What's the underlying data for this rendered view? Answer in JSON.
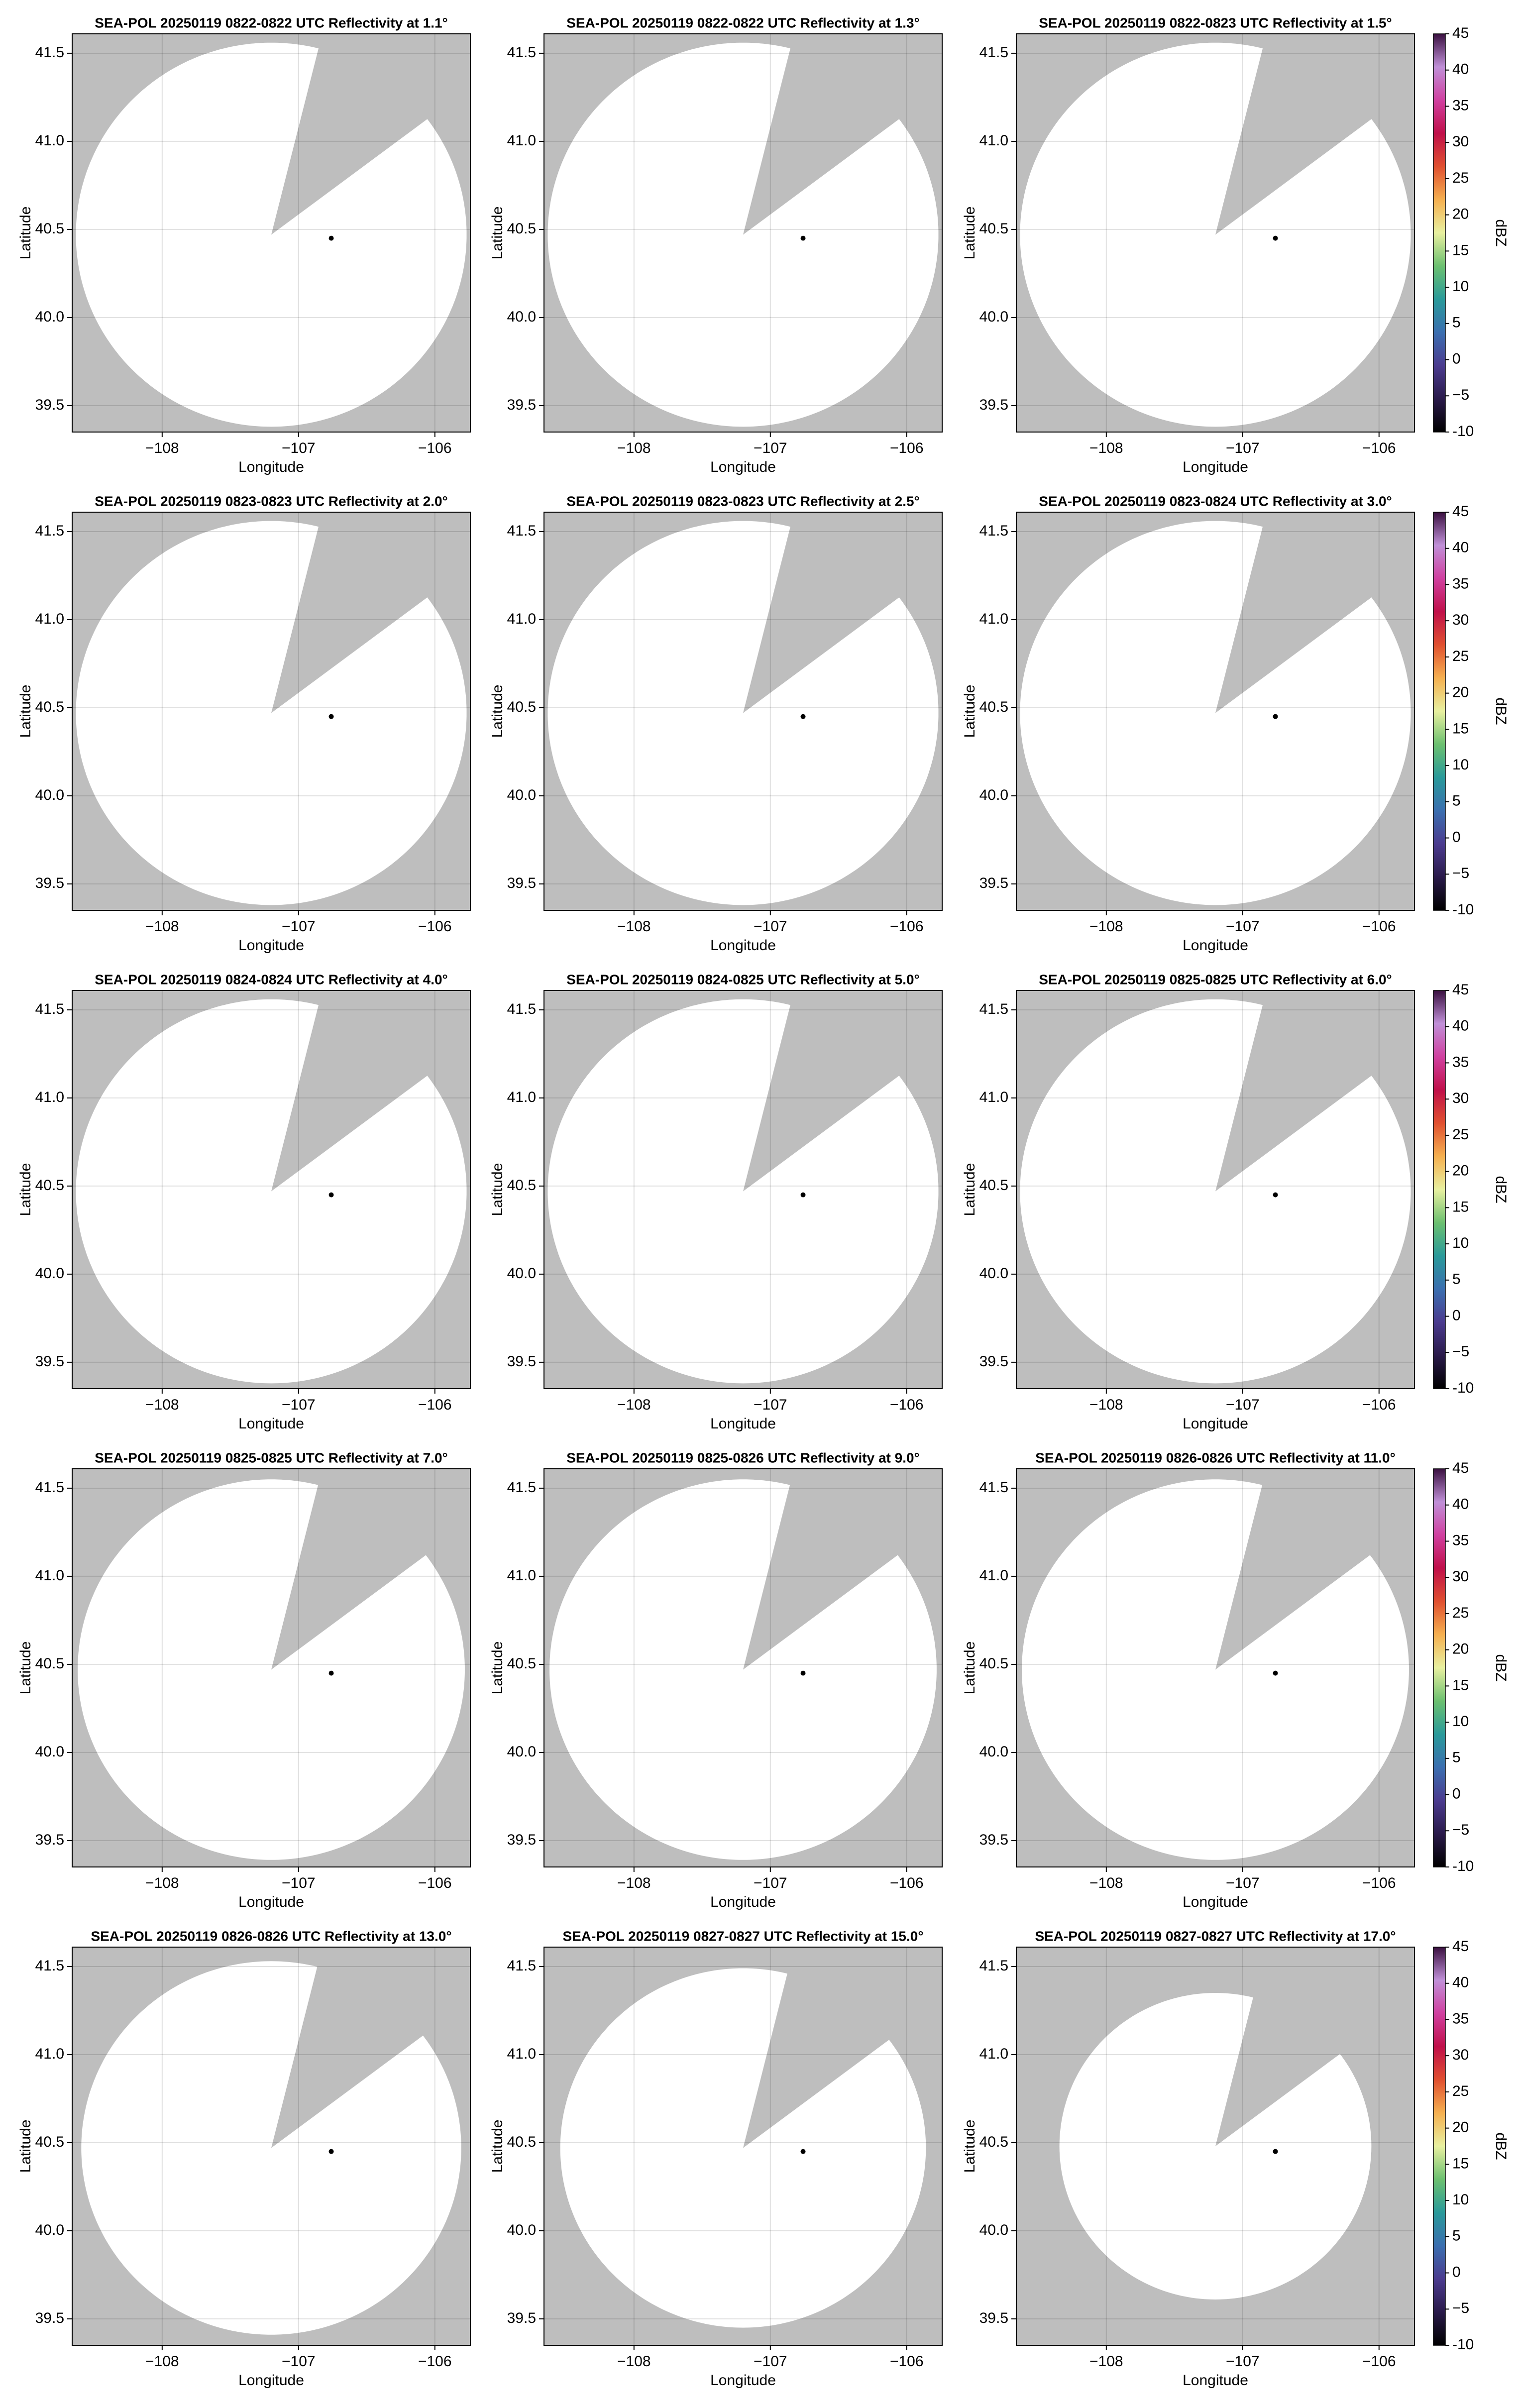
{
  "chart_data": [
    {
      "type": "map",
      "title": "SEA-POL 20250119 0822-0822 UTC Reflectivity at 1.1°",
      "xlabel": "Longitude",
      "ylabel": "Latitude",
      "xlim": [
        -108.66,
        -105.74
      ],
      "ylim": [
        39.35,
        41.61
      ],
      "xticks": [
        {
          "value": -108,
          "label": "−108"
        },
        {
          "value": -107,
          "label": "−107"
        },
        {
          "value": -106,
          "label": "−106"
        }
      ],
      "yticks": [
        39.5,
        {
          "value": 40,
          "label": "40.0"
        },
        40.5,
        {
          "value": 41,
          "label": "41.0"
        },
        41.5
      ],
      "grid": true,
      "background": "#bebebe",
      "coverage": {
        "lon": -107.2,
        "lat": 40.47,
        "radius": 1.09,
        "gap": [
          14,
          53
        ],
        "color": "#ffffff"
      },
      "marker": {
        "lon": -106.76,
        "lat": 40.45
      }
    },
    {
      "type": "map",
      "title": "SEA-POL 20250119 0822-0822 UTC Reflectivity at 1.3°",
      "xlabel": "Longitude",
      "ylabel": "Latitude",
      "xlim": [
        -108.66,
        -105.74
      ],
      "ylim": [
        39.35,
        41.61
      ],
      "xticks": [
        {
          "value": -108,
          "label": "−108"
        },
        {
          "value": -107,
          "label": "−107"
        },
        {
          "value": -106,
          "label": "−106"
        }
      ],
      "yticks": [
        39.5,
        {
          "value": 40,
          "label": "40.0"
        },
        40.5,
        {
          "value": 41,
          "label": "41.0"
        },
        41.5
      ],
      "grid": true,
      "background": "#bebebe",
      "coverage": {
        "lon": -107.2,
        "lat": 40.47,
        "radius": 1.09,
        "gap": [
          14,
          53
        ],
        "color": "#ffffff"
      },
      "marker": {
        "lon": -106.76,
        "lat": 40.45
      }
    },
    {
      "type": "map",
      "title": "SEA-POL 20250119 0822-0823 UTC Reflectivity at 1.5°",
      "xlabel": "Longitude",
      "ylabel": "Latitude",
      "xlim": [
        -108.66,
        -105.74
      ],
      "ylim": [
        39.35,
        41.61
      ],
      "xticks": [
        {
          "value": -108,
          "label": "−108"
        },
        {
          "value": -107,
          "label": "−107"
        },
        {
          "value": -106,
          "label": "−106"
        }
      ],
      "yticks": [
        39.5,
        {
          "value": 40,
          "label": "40.0"
        },
        40.5,
        {
          "value": 41,
          "label": "41.0"
        },
        41.5
      ],
      "grid": true,
      "background": "#bebebe",
      "coverage": {
        "lon": -107.2,
        "lat": 40.47,
        "radius": 1.09,
        "gap": [
          14,
          53
        ],
        "color": "#ffffff"
      },
      "marker": {
        "lon": -106.76,
        "lat": 40.45
      },
      "colorbar": {
        "label": "dBZ",
        "lim": [
          -10,
          45
        ],
        "ticks": [
          -10,
          {
            "value": -5,
            "label": "−5"
          },
          0,
          5,
          10,
          15,
          20,
          25,
          30,
          35,
          40,
          45
        ],
        "colors": [
          "#000000",
          "#2a1a4a",
          "#4b3b8f",
          "#3b6fb0",
          "#2a9a9a",
          "#6cc070",
          "#e8f0a0",
          "#f5b050",
          "#e05030",
          "#c0104a",
          "#d040a0",
          "#c090d8",
          "#3a1040"
        ]
      }
    },
    {
      "type": "map",
      "title": "SEA-POL 20250119 0823-0823 UTC Reflectivity at 2.0°",
      "xlabel": "Longitude",
      "ylabel": "Latitude",
      "xlim": [
        -108.66,
        -105.74
      ],
      "ylim": [
        39.35,
        41.61
      ],
      "xticks": [
        {
          "value": -108,
          "label": "−108"
        },
        {
          "value": -107,
          "label": "−107"
        },
        {
          "value": -106,
          "label": "−106"
        }
      ],
      "yticks": [
        39.5,
        {
          "value": 40,
          "label": "40.0"
        },
        40.5,
        {
          "value": 41,
          "label": "41.0"
        },
        41.5
      ],
      "grid": true,
      "background": "#bebebe",
      "coverage": {
        "lon": -107.2,
        "lat": 40.47,
        "radius": 1.09,
        "gap": [
          14,
          53
        ],
        "color": "#ffffff"
      },
      "marker": {
        "lon": -106.76,
        "lat": 40.45
      }
    },
    {
      "type": "map",
      "title": "SEA-POL 20250119 0823-0823 UTC Reflectivity at 2.5°",
      "xlabel": "Longitude",
      "ylabel": "Latitude",
      "xlim": [
        -108.66,
        -105.74
      ],
      "ylim": [
        39.35,
        41.61
      ],
      "xticks": [
        {
          "value": -108,
          "label": "−108"
        },
        {
          "value": -107,
          "label": "−107"
        },
        {
          "value": -106,
          "label": "−106"
        }
      ],
      "yticks": [
        39.5,
        {
          "value": 40,
          "label": "40.0"
        },
        40.5,
        {
          "value": 41,
          "label": "41.0"
        },
        41.5
      ],
      "grid": true,
      "background": "#bebebe",
      "coverage": {
        "lon": -107.2,
        "lat": 40.47,
        "radius": 1.09,
        "gap": [
          14,
          53
        ],
        "color": "#ffffff"
      },
      "marker": {
        "lon": -106.76,
        "lat": 40.45
      }
    },
    {
      "type": "map",
      "title": "SEA-POL 20250119 0823-0824 UTC Reflectivity at 3.0°",
      "xlabel": "Longitude",
      "ylabel": "Latitude",
      "xlim": [
        -108.66,
        -105.74
      ],
      "ylim": [
        39.35,
        41.61
      ],
      "xticks": [
        {
          "value": -108,
          "label": "−108"
        },
        {
          "value": -107,
          "label": "−107"
        },
        {
          "value": -106,
          "label": "−106"
        }
      ],
      "yticks": [
        39.5,
        {
          "value": 40,
          "label": "40.0"
        },
        40.5,
        {
          "value": 41,
          "label": "41.0"
        },
        41.5
      ],
      "grid": true,
      "background": "#bebebe",
      "coverage": {
        "lon": -107.2,
        "lat": 40.47,
        "radius": 1.09,
        "gap": [
          14,
          53
        ],
        "color": "#ffffff"
      },
      "marker": {
        "lon": -106.76,
        "lat": 40.45
      },
      "colorbar": {
        "label": "dBZ",
        "lim": [
          -10,
          45
        ],
        "ticks": [
          -10,
          {
            "value": -5,
            "label": "−5"
          },
          0,
          5,
          10,
          15,
          20,
          25,
          30,
          35,
          40,
          45
        ],
        "colors": [
          "#000000",
          "#2a1a4a",
          "#4b3b8f",
          "#3b6fb0",
          "#2a9a9a",
          "#6cc070",
          "#e8f0a0",
          "#f5b050",
          "#e05030",
          "#c0104a",
          "#d040a0",
          "#c090d8",
          "#3a1040"
        ]
      }
    },
    {
      "type": "map",
      "title": "SEA-POL 20250119 0824-0824 UTC Reflectivity at 4.0°",
      "xlabel": "Longitude",
      "ylabel": "Latitude",
      "xlim": [
        -108.66,
        -105.74
      ],
      "ylim": [
        39.35,
        41.61
      ],
      "xticks": [
        {
          "value": -108,
          "label": "−108"
        },
        {
          "value": -107,
          "label": "−107"
        },
        {
          "value": -106,
          "label": "−106"
        }
      ],
      "yticks": [
        39.5,
        {
          "value": 40,
          "label": "40.0"
        },
        40.5,
        {
          "value": 41,
          "label": "41.0"
        },
        41.5
      ],
      "grid": true,
      "background": "#bebebe",
      "coverage": {
        "lon": -107.2,
        "lat": 40.47,
        "radius": 1.09,
        "gap": [
          14,
          53
        ],
        "color": "#ffffff"
      },
      "marker": {
        "lon": -106.76,
        "lat": 40.45
      }
    },
    {
      "type": "map",
      "title": "SEA-POL 20250119 0824-0825 UTC Reflectivity at 5.0°",
      "xlabel": "Longitude",
      "ylabel": "Latitude",
      "xlim": [
        -108.66,
        -105.74
      ],
      "ylim": [
        39.35,
        41.61
      ],
      "xticks": [
        {
          "value": -108,
          "label": "−108"
        },
        {
          "value": -107,
          "label": "−107"
        },
        {
          "value": -106,
          "label": "−106"
        }
      ],
      "yticks": [
        39.5,
        {
          "value": 40,
          "label": "40.0"
        },
        40.5,
        {
          "value": 41,
          "label": "41.0"
        },
        41.5
      ],
      "grid": true,
      "background": "#bebebe",
      "coverage": {
        "lon": -107.2,
        "lat": 40.47,
        "radius": 1.09,
        "gap": [
          14,
          53
        ],
        "color": "#ffffff"
      },
      "marker": {
        "lon": -106.76,
        "lat": 40.45
      }
    },
    {
      "type": "map",
      "title": "SEA-POL 20250119 0825-0825 UTC Reflectivity at 6.0°",
      "xlabel": "Longitude",
      "ylabel": "Latitude",
      "xlim": [
        -108.66,
        -105.74
      ],
      "ylim": [
        39.35,
        41.61
      ],
      "xticks": [
        {
          "value": -108,
          "label": "−108"
        },
        {
          "value": -107,
          "label": "−107"
        },
        {
          "value": -106,
          "label": "−106"
        }
      ],
      "yticks": [
        39.5,
        {
          "value": 40,
          "label": "40.0"
        },
        40.5,
        {
          "value": 41,
          "label": "41.0"
        },
        41.5
      ],
      "grid": true,
      "background": "#bebebe",
      "coverage": {
        "lon": -107.2,
        "lat": 40.47,
        "radius": 1.09,
        "gap": [
          14,
          53
        ],
        "color": "#ffffff"
      },
      "marker": {
        "lon": -106.76,
        "lat": 40.45
      },
      "colorbar": {
        "label": "dBZ",
        "lim": [
          -10,
          45
        ],
        "ticks": [
          -10,
          {
            "value": -5,
            "label": "−5"
          },
          0,
          5,
          10,
          15,
          20,
          25,
          30,
          35,
          40,
          45
        ],
        "colors": [
          "#000000",
          "#2a1a4a",
          "#4b3b8f",
          "#3b6fb0",
          "#2a9a9a",
          "#6cc070",
          "#e8f0a0",
          "#f5b050",
          "#e05030",
          "#c0104a",
          "#d040a0",
          "#c090d8",
          "#3a1040"
        ]
      }
    },
    {
      "type": "map",
      "title": "SEA-POL 20250119 0825-0825 UTC Reflectivity at 7.0°",
      "xlabel": "Longitude",
      "ylabel": "Latitude",
      "xlim": [
        -108.66,
        -105.74
      ],
      "ylim": [
        39.35,
        41.61
      ],
      "xticks": [
        {
          "value": -108,
          "label": "−108"
        },
        {
          "value": -107,
          "label": "−107"
        },
        {
          "value": -106,
          "label": "−106"
        }
      ],
      "yticks": [
        39.5,
        {
          "value": 40,
          "label": "40.0"
        },
        40.5,
        {
          "value": 41,
          "label": "41.0"
        },
        41.5
      ],
      "grid": true,
      "background": "#bebebe",
      "coverage": {
        "lon": -107.2,
        "lat": 40.47,
        "radius": 1.08,
        "gap": [
          14,
          53
        ],
        "color": "#ffffff"
      },
      "marker": {
        "lon": -106.76,
        "lat": 40.45
      }
    },
    {
      "type": "map",
      "title": "SEA-POL 20250119 0825-0826 UTC Reflectivity at 9.0°",
      "xlabel": "Longitude",
      "ylabel": "Latitude",
      "xlim": [
        -108.66,
        -105.74
      ],
      "ylim": [
        39.35,
        41.61
      ],
      "xticks": [
        {
          "value": -108,
          "label": "−108"
        },
        {
          "value": -107,
          "label": "−107"
        },
        {
          "value": -106,
          "label": "−106"
        }
      ],
      "yticks": [
        39.5,
        {
          "value": 40,
          "label": "40.0"
        },
        40.5,
        {
          "value": 41,
          "label": "41.0"
        },
        41.5
      ],
      "grid": true,
      "background": "#bebebe",
      "coverage": {
        "lon": -107.2,
        "lat": 40.47,
        "radius": 1.08,
        "gap": [
          14,
          53
        ],
        "color": "#ffffff"
      },
      "marker": {
        "lon": -106.76,
        "lat": 40.45
      }
    },
    {
      "type": "map",
      "title": "SEA-POL 20250119 0826-0826 UTC Reflectivity at 11.0°",
      "xlabel": "Longitude",
      "ylabel": "Latitude",
      "xlim": [
        -108.66,
        -105.74
      ],
      "ylim": [
        39.35,
        41.61
      ],
      "xticks": [
        {
          "value": -108,
          "label": "−108"
        },
        {
          "value": -107,
          "label": "−107"
        },
        {
          "value": -106,
          "label": "−106"
        }
      ],
      "yticks": [
        39.5,
        {
          "value": 40,
          "label": "40.0"
        },
        40.5,
        {
          "value": 41,
          "label": "41.0"
        },
        41.5
      ],
      "grid": true,
      "background": "#bebebe",
      "coverage": {
        "lon": -107.2,
        "lat": 40.47,
        "radius": 1.08,
        "gap": [
          14,
          53
        ],
        "color": "#ffffff"
      },
      "marker": {
        "lon": -106.76,
        "lat": 40.45
      },
      "colorbar": {
        "label": "dBZ",
        "lim": [
          -10,
          45
        ],
        "ticks": [
          -10,
          {
            "value": -5,
            "label": "−5"
          },
          0,
          5,
          10,
          15,
          20,
          25,
          30,
          35,
          40,
          45
        ],
        "colors": [
          "#000000",
          "#2a1a4a",
          "#4b3b8f",
          "#3b6fb0",
          "#2a9a9a",
          "#6cc070",
          "#e8f0a0",
          "#f5b050",
          "#e05030",
          "#c0104a",
          "#d040a0",
          "#c090d8",
          "#3a1040"
        ]
      }
    },
    {
      "type": "map",
      "title": "SEA-POL 20250119 0826-0826 UTC Reflectivity at 13.0°",
      "xlabel": "Longitude",
      "ylabel": "Latitude",
      "xlim": [
        -108.66,
        -105.74
      ],
      "ylim": [
        39.35,
        41.61
      ],
      "xticks": [
        {
          "value": -108,
          "label": "−108"
        },
        {
          "value": -107,
          "label": "−107"
        },
        {
          "value": -106,
          "label": "−106"
        }
      ],
      "yticks": [
        39.5,
        {
          "value": 40,
          "label": "40.0"
        },
        40.5,
        {
          "value": 41,
          "label": "41.0"
        },
        41.5
      ],
      "grid": true,
      "background": "#bebebe",
      "coverage": {
        "lon": -107.2,
        "lat": 40.47,
        "radius": 1.06,
        "gap": [
          14,
          53
        ],
        "color": "#ffffff"
      },
      "marker": {
        "lon": -106.76,
        "lat": 40.45
      }
    },
    {
      "type": "map",
      "title": "SEA-POL 20250119 0827-0827 UTC Reflectivity at 15.0°",
      "xlabel": "Longitude",
      "ylabel": "Latitude",
      "xlim": [
        -108.66,
        -105.74
      ],
      "ylim": [
        39.35,
        41.61
      ],
      "xticks": [
        {
          "value": -108,
          "label": "−108"
        },
        {
          "value": -107,
          "label": "−107"
        },
        {
          "value": -106,
          "label": "−106"
        }
      ],
      "yticks": [
        39.5,
        {
          "value": 40,
          "label": "40.0"
        },
        40.5,
        {
          "value": 41,
          "label": "41.0"
        },
        41.5
      ],
      "grid": true,
      "background": "#bebebe",
      "coverage": {
        "lon": -107.2,
        "lat": 40.47,
        "radius": 1.02,
        "gap": [
          14,
          53
        ],
        "color": "#ffffff"
      },
      "marker": {
        "lon": -106.76,
        "lat": 40.45
      }
    },
    {
      "type": "map",
      "title": "SEA-POL 20250119 0827-0827 UTC Reflectivity at 17.0°",
      "xlabel": "Longitude",
      "ylabel": "Latitude",
      "xlim": [
        -108.66,
        -105.74
      ],
      "ylim": [
        39.35,
        41.61
      ],
      "xticks": [
        {
          "value": -108,
          "label": "−108"
        },
        {
          "value": -107,
          "label": "−107"
        },
        {
          "value": -106,
          "label": "−106"
        }
      ],
      "yticks": [
        39.5,
        {
          "value": 40,
          "label": "40.0"
        },
        40.5,
        {
          "value": 41,
          "label": "41.0"
        },
        41.5
      ],
      "grid": true,
      "background": "#bebebe",
      "coverage": {
        "lon": -107.2,
        "lat": 40.48,
        "radius": 0.87,
        "gap": [
          14,
          53
        ],
        "color": "#ffffff"
      },
      "marker": {
        "lon": -106.76,
        "lat": 40.45
      },
      "colorbar": {
        "label": "dBZ",
        "lim": [
          -10,
          45
        ],
        "ticks": [
          -10,
          {
            "value": -5,
            "label": "−5"
          },
          0,
          5,
          10,
          15,
          20,
          25,
          30,
          35,
          40,
          45
        ],
        "colors": [
          "#000000",
          "#2a1a4a",
          "#4b3b8f",
          "#3b6fb0",
          "#2a9a9a",
          "#6cc070",
          "#e8f0a0",
          "#f5b050",
          "#e05030",
          "#c0104a",
          "#d040a0",
          "#c090d8",
          "#3a1040"
        ]
      }
    }
  ]
}
